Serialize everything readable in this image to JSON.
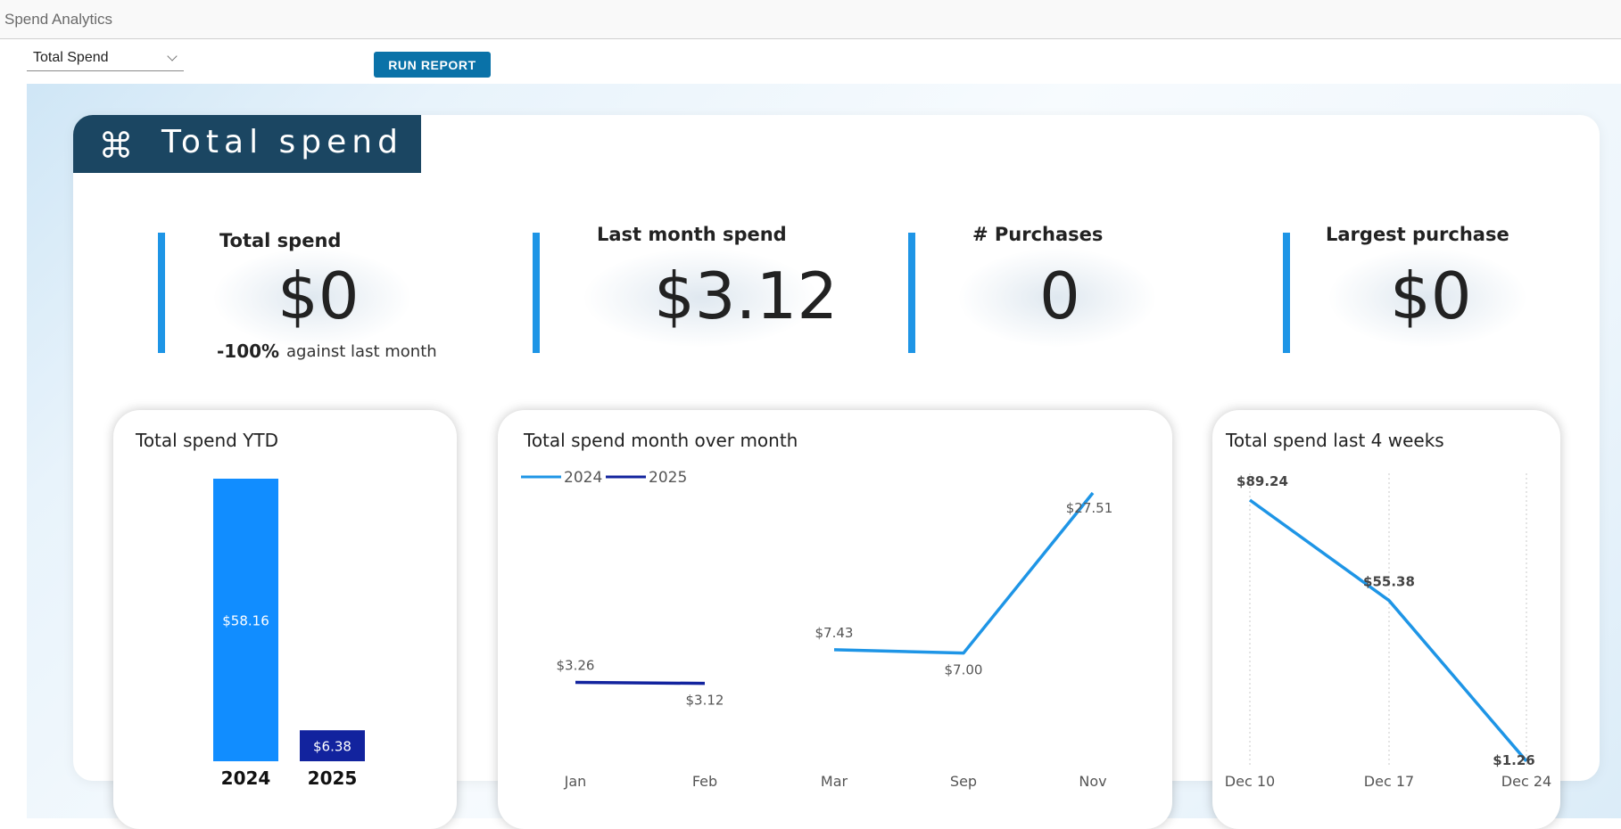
{
  "app": {
    "title": "Spend Analytics"
  },
  "toolbar": {
    "report_select_value": "Total Spend",
    "run_button_label": "RUN REPORT",
    "accent_color": "#0a72a8"
  },
  "dashboard": {
    "banner_title": "Total spend",
    "banner_icon": "command-icon",
    "banner_color": "#1b4662"
  },
  "kpis": [
    {
      "label": "Total spend",
      "value": "$0",
      "delta": "-100%",
      "delta_label": "against last month"
    },
    {
      "label": "Last month spend",
      "value": "$3.12"
    },
    {
      "label": "# Purchases",
      "value": "0"
    },
    {
      "label": "Largest purchase",
      "value": "$0"
    }
  ],
  "charts": {
    "ytd_title": "Total spend YTD",
    "mom_title": "Total spend month over month",
    "weeks_title": "Total spend last 4 weeks"
  },
  "chart_data": [
    {
      "type": "bar",
      "title": "Total spend YTD",
      "categories": [
        "2024",
        "2025"
      ],
      "values": [
        58.16,
        6.38
      ],
      "data_labels": [
        "$58.16",
        "$6.38"
      ],
      "colors": [
        "#118dff",
        "#12239e"
      ],
      "ylim": [
        0,
        58.16
      ]
    },
    {
      "type": "line",
      "title": "Total spend month over month",
      "categories": [
        "Jan",
        "Feb",
        "Mar",
        "Sep",
        "Nov"
      ],
      "legend_position": "top-left",
      "ylim": [
        0,
        27.51
      ],
      "series": [
        {
          "name": "2024",
          "color": "#1e95e6",
          "values": [
            null,
            null,
            7.43,
            7.0,
            27.51
          ],
          "labels": [
            null,
            null,
            "$7.43",
            "$7.00",
            "$27.51"
          ]
        },
        {
          "name": "2025",
          "color": "#12239e",
          "values": [
            3.26,
            3.12,
            null,
            null,
            null
          ],
          "labels": [
            "$3.26",
            "$3.12",
            null,
            null,
            null
          ]
        }
      ]
    },
    {
      "type": "line",
      "title": "Total spend last 4 weeks",
      "categories": [
        "Dec 10",
        "Dec 17",
        "Dec 24"
      ],
      "ylim": [
        0,
        89.24
      ],
      "grid": "vertical-dotted",
      "series": [
        {
          "color": "#1e95e6",
          "values": [
            89.24,
            55.38,
            1.26
          ],
          "labels": [
            "$89.24",
            "$55.38",
            "$1.26"
          ]
        }
      ]
    }
  ]
}
